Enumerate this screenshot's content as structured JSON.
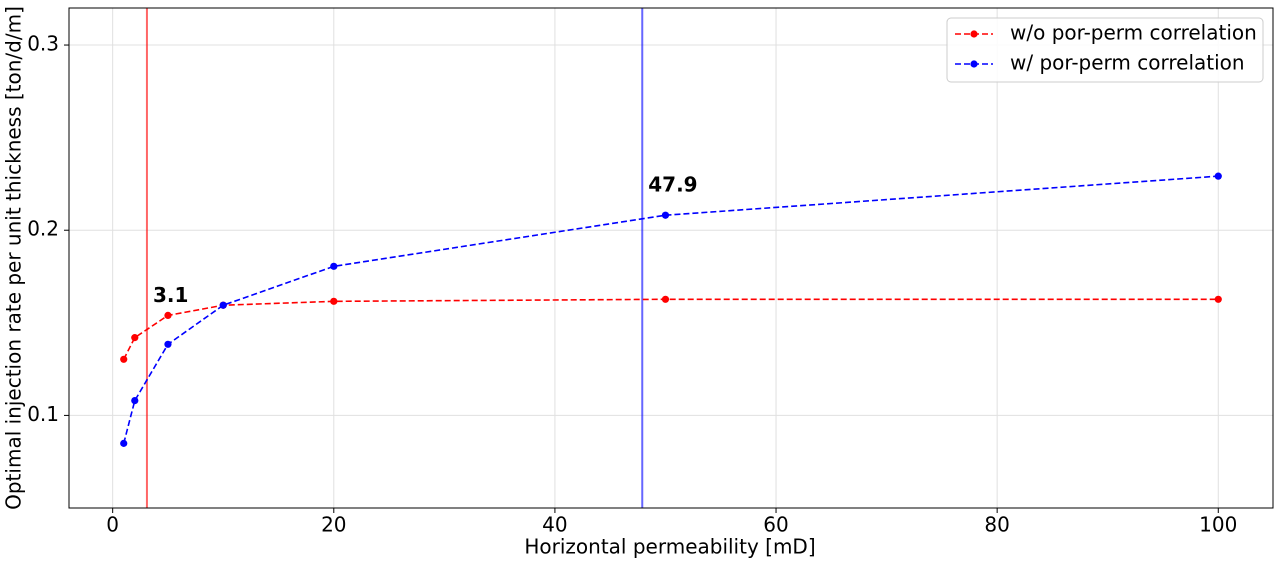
{
  "chart_data": {
    "type": "line",
    "xlabel": "Horizontal permeability [mD]",
    "ylabel": "Optimal injection rate per unit thickness [ton/d/m]",
    "x": [
      1,
      2,
      5,
      10,
      20,
      50,
      100
    ],
    "series": [
      {
        "name": "w/o por-perm correlation",
        "color": "#ff0000",
        "values": [
          0.1303,
          0.142,
          0.154,
          0.1595,
          0.1616,
          0.1627,
          0.1627
        ]
      },
      {
        "name": "w/ por-perm correlation",
        "color": "#0000ff",
        "values": [
          0.0849,
          0.108,
          0.1384,
          0.1595,
          0.1805,
          0.2081,
          0.2292
        ]
      }
    ],
    "vlines": [
      {
        "x": 3.1,
        "color": "#ff0000"
      },
      {
        "x": 47.9,
        "color": "#0000ff"
      }
    ],
    "xlim": [
      -3.95,
      104.95
    ],
    "ylim": [
      0.05,
      0.32
    ],
    "xticks": [
      0,
      20,
      40,
      60,
      80,
      100
    ],
    "yticks": [
      0.1,
      0.2,
      0.3
    ],
    "grid": true,
    "legend": "upper right"
  }
}
